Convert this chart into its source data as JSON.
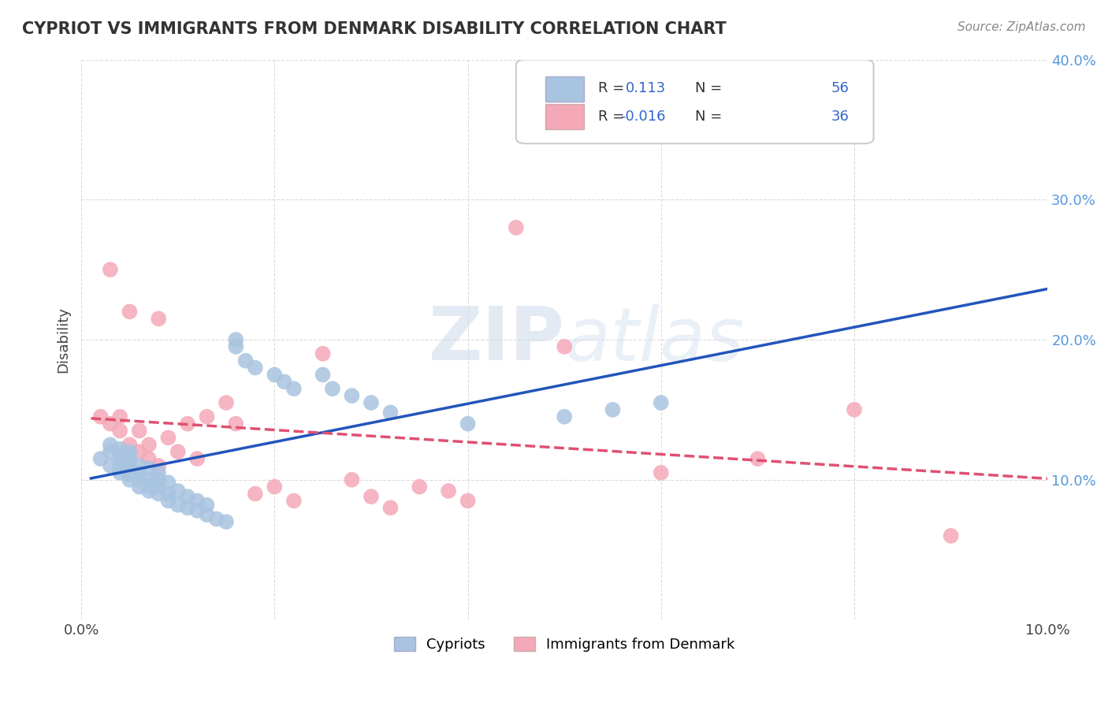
{
  "title": "CYPRIOT VS IMMIGRANTS FROM DENMARK DISABILITY CORRELATION CHART",
  "source": "Source: ZipAtlas.com",
  "xlabel": "",
  "ylabel": "Disability",
  "xlim": [
    0.0,
    0.1
  ],
  "ylim": [
    0.0,
    0.4
  ],
  "x_ticks": [
    0.0,
    0.02,
    0.04,
    0.06,
    0.08,
    0.1
  ],
  "y_ticks": [
    0.0,
    0.1,
    0.2,
    0.3,
    0.4
  ],
  "x_tick_labels": [
    "0.0%",
    "",
    "",
    "",
    "",
    "10.0%"
  ],
  "y_tick_labels": [
    "",
    "10.0%",
    "20.0%",
    "30.0%",
    "40.0%"
  ],
  "cypriot_color": "#a8c4e0",
  "denmark_color": "#f4a8b8",
  "cypriot_line_color": "#2255bb",
  "denmark_line_color": "#e05070",
  "cypriot_R": 0.113,
  "cypriot_N": 56,
  "denmark_R": -0.016,
  "denmark_N": 36,
  "grid_color": "#cccccc",
  "background_color": "#ffffff",
  "cypriot_x": [
    0.002,
    0.003,
    0.003,
    0.003,
    0.004,
    0.004,
    0.004,
    0.004,
    0.004,
    0.005,
    0.005,
    0.005,
    0.005,
    0.005,
    0.005,
    0.006,
    0.006,
    0.006,
    0.006,
    0.007,
    0.007,
    0.007,
    0.007,
    0.008,
    0.008,
    0.008,
    0.008,
    0.009,
    0.009,
    0.009,
    0.01,
    0.01,
    0.011,
    0.011,
    0.012,
    0.012,
    0.013,
    0.013,
    0.014,
    0.015,
    0.016,
    0.016,
    0.017,
    0.018,
    0.02,
    0.021,
    0.022,
    0.025,
    0.026,
    0.028,
    0.03,
    0.032,
    0.04,
    0.05,
    0.055,
    0.06
  ],
  "cypriot_y": [
    0.115,
    0.11,
    0.12,
    0.125,
    0.105,
    0.108,
    0.112,
    0.118,
    0.122,
    0.1,
    0.104,
    0.108,
    0.112,
    0.116,
    0.12,
    0.095,
    0.1,
    0.105,
    0.11,
    0.092,
    0.096,
    0.1,
    0.108,
    0.09,
    0.095,
    0.1,
    0.105,
    0.085,
    0.09,
    0.098,
    0.082,
    0.092,
    0.08,
    0.088,
    0.078,
    0.085,
    0.075,
    0.082,
    0.072,
    0.07,
    0.195,
    0.2,
    0.185,
    0.18,
    0.175,
    0.17,
    0.165,
    0.175,
    0.165,
    0.16,
    0.155,
    0.148,
    0.14,
    0.145,
    0.15,
    0.155
  ],
  "denmark_x": [
    0.002,
    0.003,
    0.003,
    0.004,
    0.004,
    0.005,
    0.005,
    0.006,
    0.006,
    0.007,
    0.007,
    0.008,
    0.008,
    0.009,
    0.01,
    0.011,
    0.012,
    0.013,
    0.015,
    0.016,
    0.018,
    0.02,
    0.022,
    0.025,
    0.028,
    0.03,
    0.032,
    0.035,
    0.038,
    0.04,
    0.045,
    0.05,
    0.06,
    0.07,
    0.08,
    0.09
  ],
  "denmark_y": [
    0.145,
    0.14,
    0.25,
    0.135,
    0.145,
    0.125,
    0.22,
    0.12,
    0.135,
    0.115,
    0.125,
    0.11,
    0.215,
    0.13,
    0.12,
    0.14,
    0.115,
    0.145,
    0.155,
    0.14,
    0.09,
    0.095,
    0.085,
    0.19,
    0.1,
    0.088,
    0.08,
    0.095,
    0.092,
    0.085,
    0.28,
    0.195,
    0.105,
    0.115,
    0.15,
    0.06
  ]
}
